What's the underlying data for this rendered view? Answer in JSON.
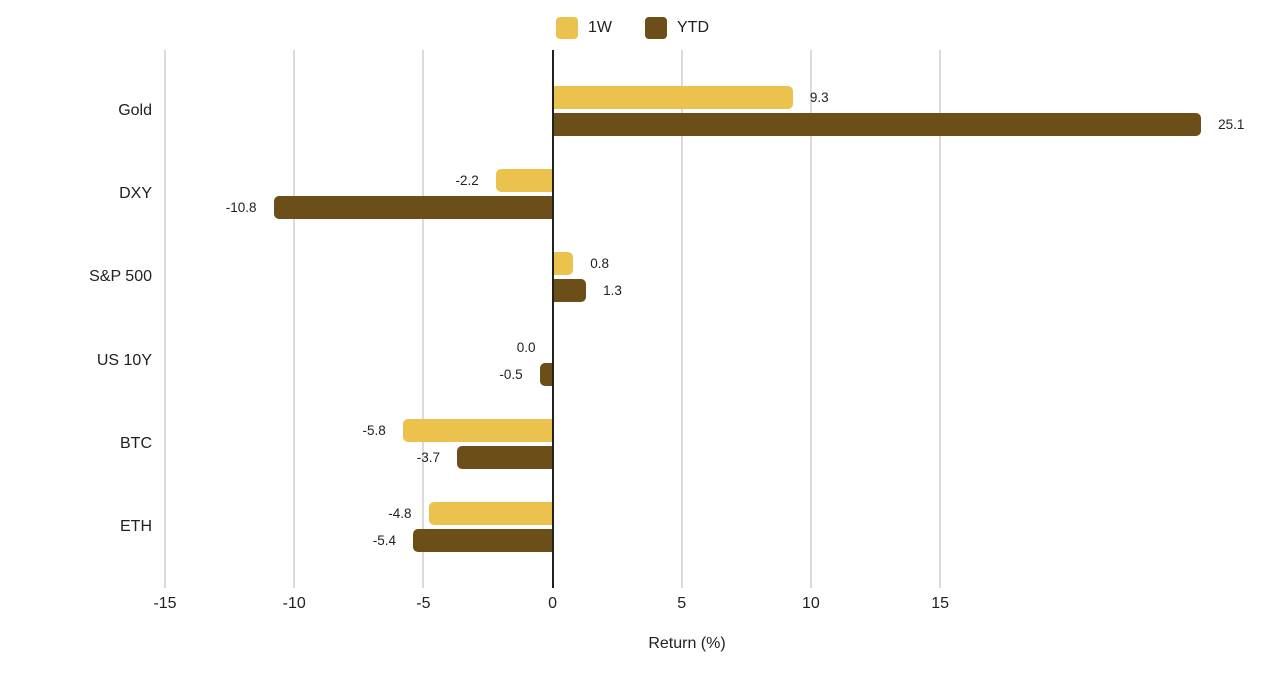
{
  "chart_data": {
    "type": "bar",
    "orientation": "horizontal",
    "title": "",
    "xlabel": "Return (%)",
    "categories": [
      "Gold",
      "DXY",
      "S&P 500",
      "US 10Y",
      "BTC",
      "ETH"
    ],
    "series": [
      {
        "name": "1W",
        "color": "#EAC24D",
        "values": [
          9.3,
          -2.2,
          0.8,
          0.0,
          -5.8,
          -4.8
        ]
      },
      {
        "name": "YTD",
        "color": "#6B4E18",
        "values": [
          25.1,
          -10.8,
          1.3,
          -0.5,
          -3.7,
          -5.4
        ]
      }
    ],
    "xticks": [
      -15,
      -10,
      -5,
      0,
      5,
      10,
      15
    ],
    "xlim": [
      -15,
      26.8
    ],
    "grid": true,
    "legend_position": "top",
    "value_label_decimals": 1,
    "colors": {
      "grid_line": "#DBDBDB",
      "zero_line": "#212121",
      "text": "#212121"
    }
  }
}
